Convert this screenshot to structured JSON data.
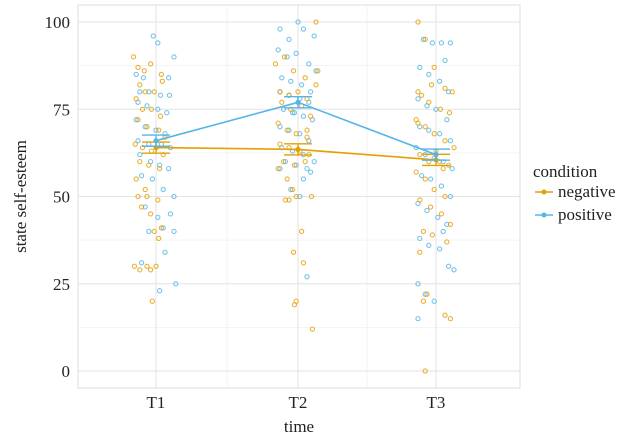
{
  "chart_data": {
    "type": "scatter",
    "title": "",
    "xlabel": "time",
    "ylabel": "state self-esteem",
    "categories": [
      "T1",
      "T2",
      "T3"
    ],
    "ylim": [
      0,
      100
    ],
    "yticks": [
      0,
      25,
      50,
      75,
      100
    ],
    "grid": true,
    "legend": {
      "title": "condition",
      "position": "right"
    },
    "series": [
      {
        "name": "negative",
        "color": "#E69F00",
        "means": [
          64,
          63.5,
          60.5
        ],
        "se": [
          1.6,
          1.6,
          1.6
        ],
        "points": [
          [
            [
              -0.25,
              90
            ],
            [
              -0.2,
              87
            ],
            [
              -0.13,
              86
            ],
            [
              -0.06,
              88
            ],
            [
              -0.18,
              82
            ],
            [
              -0.12,
              80
            ],
            [
              -0.02,
              80
            ],
            [
              -0.22,
              78
            ],
            [
              -0.15,
              75
            ],
            [
              -0.05,
              75
            ],
            [
              0.05,
              73
            ],
            [
              -0.2,
              72
            ],
            [
              -0.1,
              70
            ],
            [
              0.03,
              69
            ],
            [
              0.1,
              67
            ],
            [
              -0.23,
              65
            ],
            [
              -0.15,
              64
            ],
            [
              -0.05,
              63
            ],
            [
              0.08,
              62
            ],
            [
              -0.18,
              60
            ],
            [
              -0.08,
              59
            ],
            [
              0.04,
              58
            ],
            [
              -0.22,
              55
            ],
            [
              -0.12,
              52
            ],
            [
              -0.2,
              50
            ],
            [
              -0.1,
              50
            ],
            [
              0.02,
              49
            ],
            [
              -0.16,
              47
            ],
            [
              -0.06,
              45
            ],
            [
              0.06,
              41
            ],
            [
              -0.02,
              40
            ],
            [
              -0.24,
              30
            ],
            [
              -0.18,
              29
            ],
            [
              -0.1,
              30
            ],
            [
              -0.06,
              29
            ],
            [
              0.0,
              30
            ],
            [
              -0.04,
              20
            ],
            [
              0.03,
              38
            ],
            [
              0.07,
              83
            ],
            [
              0.06,
              85
            ]
          ],
          [
            [
              -0.25,
              88
            ],
            [
              -0.15,
              90
            ],
            [
              -0.05,
              86
            ],
            [
              0.08,
              84
            ],
            [
              0.2,
              82
            ],
            [
              -0.2,
              80
            ],
            [
              -0.1,
              79
            ],
            [
              0.0,
              80
            ],
            [
              0.1,
              78
            ],
            [
              -0.18,
              77
            ],
            [
              -0.08,
              75
            ],
            [
              0.04,
              76
            ],
            [
              0.14,
              73
            ],
            [
              -0.22,
              71
            ],
            [
              -0.12,
              69
            ],
            [
              -0.02,
              68
            ],
            [
              0.1,
              67
            ],
            [
              -0.2,
              65
            ],
            [
              -0.1,
              64
            ],
            [
              0.02,
              63
            ],
            [
              0.12,
              62
            ],
            [
              -0.16,
              60
            ],
            [
              -0.04,
              59
            ],
            [
              0.08,
              60
            ],
            [
              -0.22,
              58
            ],
            [
              -0.12,
              55
            ],
            [
              -0.02,
              50
            ],
            [
              -0.1,
              49
            ],
            [
              -0.14,
              49
            ],
            [
              0.15,
              50
            ],
            [
              0.04,
              40
            ],
            [
              -0.05,
              34
            ],
            [
              0.06,
              31
            ],
            [
              -0.02,
              20
            ],
            [
              -0.04,
              19
            ],
            [
              0.16,
              12
            ],
            [
              0.2,
              100
            ],
            [
              0.22,
              86
            ],
            [
              -0.06,
              52
            ],
            [
              0.1,
              69
            ]
          ],
          [
            [
              -0.2,
              100
            ],
            [
              -0.12,
              95
            ],
            [
              -0.02,
              87
            ],
            [
              0.1,
              81
            ],
            [
              -0.2,
              80
            ],
            [
              -0.16,
              79
            ],
            [
              -0.08,
              77
            ],
            [
              0.05,
              75
            ],
            [
              0.15,
              74
            ],
            [
              -0.22,
              72
            ],
            [
              -0.12,
              70
            ],
            [
              -0.02,
              68
            ],
            [
              0.1,
              66
            ],
            [
              0.2,
              64
            ],
            [
              -0.18,
              62
            ],
            [
              -0.08,
              60
            ],
            [
              0.04,
              60
            ],
            [
              0.14,
              59
            ],
            [
              -0.22,
              57
            ],
            [
              -0.12,
              55
            ],
            [
              -0.02,
              52
            ],
            [
              0.1,
              50
            ],
            [
              -0.18,
              49
            ],
            [
              -0.06,
              47
            ],
            [
              0.06,
              45
            ],
            [
              0.16,
              42
            ],
            [
              -0.14,
              40
            ],
            [
              -0.04,
              39
            ],
            [
              0.12,
              37
            ],
            [
              -0.18,
              34
            ],
            [
              -0.1,
              22
            ],
            [
              -0.14,
              20
            ],
            [
              0.1,
              16
            ],
            [
              0.16,
              15
            ],
            [
              -0.12,
              0
            ],
            [
              -0.05,
              82
            ],
            [
              0.0,
              63
            ],
            [
              0.18,
              80
            ],
            [
              -0.2,
              71
            ],
            [
              0.08,
              58
            ]
          ]
        ]
      },
      {
        "name": "positive",
        "color": "#56B4E9",
        "means": [
          66,
          77,
          62
        ],
        "se": [
          1.6,
          1.6,
          1.6
        ],
        "points": [
          [
            [
              -0.03,
              96
            ],
            [
              0.02,
              94
            ],
            [
              -0.22,
              85
            ],
            [
              -0.14,
              84
            ],
            [
              0.14,
              84
            ],
            [
              0.2,
              90
            ],
            [
              -0.18,
              80
            ],
            [
              -0.08,
              80
            ],
            [
              0.05,
              79
            ],
            [
              0.15,
              79
            ],
            [
              -0.2,
              77
            ],
            [
              -0.1,
              76
            ],
            [
              0.02,
              75
            ],
            [
              0.12,
              74
            ],
            [
              -0.22,
              72
            ],
            [
              -0.12,
              70
            ],
            [
              0.0,
              69
            ],
            [
              0.1,
              68
            ],
            [
              -0.2,
              66
            ],
            [
              -0.08,
              65
            ],
            [
              0.06,
              65
            ],
            [
              0.16,
              64
            ],
            [
              -0.18,
              62
            ],
            [
              -0.06,
              60
            ],
            [
              0.04,
              59
            ],
            [
              0.14,
              58
            ],
            [
              -0.16,
              56
            ],
            [
              -0.04,
              55
            ],
            [
              0.08,
              52
            ],
            [
              0.2,
              50
            ],
            [
              -0.12,
              47
            ],
            [
              0.16,
              45
            ],
            [
              0.02,
              44
            ],
            [
              -0.08,
              40
            ],
            [
              0.08,
              41
            ],
            [
              0.2,
              40
            ],
            [
              0.1,
              34
            ],
            [
              -0.16,
              31
            ],
            [
              0.04,
              23
            ],
            [
              0.22,
              25
            ]
          ],
          [
            [
              -0.2,
              98
            ],
            [
              -0.1,
              95
            ],
            [
              0.0,
              100
            ],
            [
              0.06,
              98
            ],
            [
              0.18,
              96
            ],
            [
              -0.22,
              92
            ],
            [
              -0.12,
              90
            ],
            [
              -0.02,
              91
            ],
            [
              0.12,
              88
            ],
            [
              0.2,
              86
            ],
            [
              -0.18,
              84
            ],
            [
              -0.08,
              83
            ],
            [
              0.04,
              82
            ],
            [
              0.14,
              80
            ],
            [
              -0.2,
              80
            ],
            [
              -0.1,
              79
            ],
            [
              0.02,
              78
            ],
            [
              0.12,
              77
            ],
            [
              -0.16,
              75
            ],
            [
              -0.06,
              74
            ],
            [
              0.06,
              73
            ],
            [
              0.16,
              72
            ],
            [
              -0.2,
              70
            ],
            [
              -0.1,
              69
            ],
            [
              0.02,
              68
            ],
            [
              0.12,
              66
            ],
            [
              -0.18,
              64
            ],
            [
              -0.06,
              63
            ],
            [
              0.06,
              62
            ],
            [
              0.18,
              60
            ],
            [
              -0.14,
              60
            ],
            [
              -0.02,
              59
            ],
            [
              0.1,
              58
            ],
            [
              -0.2,
              58
            ],
            [
              0.06,
              55
            ],
            [
              0.14,
              57
            ],
            [
              -0.08,
              52
            ],
            [
              0.02,
              50
            ],
            [
              0.1,
              27
            ],
            [
              -0.04,
              74
            ]
          ],
          [
            [
              -0.14,
              95
            ],
            [
              -0.04,
              94
            ],
            [
              0.06,
              94
            ],
            [
              0.16,
              94
            ],
            [
              0.1,
              89
            ],
            [
              -0.18,
              87
            ],
            [
              -0.08,
              85
            ],
            [
              0.04,
              83
            ],
            [
              0.14,
              80
            ],
            [
              -0.2,
              78
            ],
            [
              -0.1,
              76
            ],
            [
              0.0,
              75
            ],
            [
              0.12,
              72
            ],
            [
              -0.18,
              70
            ],
            [
              -0.08,
              69
            ],
            [
              0.04,
              68
            ],
            [
              0.16,
              66
            ],
            [
              -0.22,
              64
            ],
            [
              -0.12,
              62
            ],
            [
              -0.02,
              61
            ],
            [
              0.08,
              60
            ],
            [
              0.18,
              58
            ],
            [
              -0.16,
              56
            ],
            [
              -0.06,
              55
            ],
            [
              0.06,
              53
            ],
            [
              0.16,
              50
            ],
            [
              -0.2,
              48
            ],
            [
              -0.1,
              46
            ],
            [
              0.02,
              44
            ],
            [
              0.12,
              42
            ],
            [
              -0.18,
              38
            ],
            [
              -0.08,
              36
            ],
            [
              0.04,
              35
            ],
            [
              0.14,
              30
            ],
            [
              -0.2,
              25
            ],
            [
              -0.12,
              22
            ],
            [
              -0.2,
              15
            ],
            [
              -0.02,
              20
            ],
            [
              0.2,
              29
            ],
            [
              0.08,
              40
            ]
          ]
        ]
      }
    ]
  }
}
